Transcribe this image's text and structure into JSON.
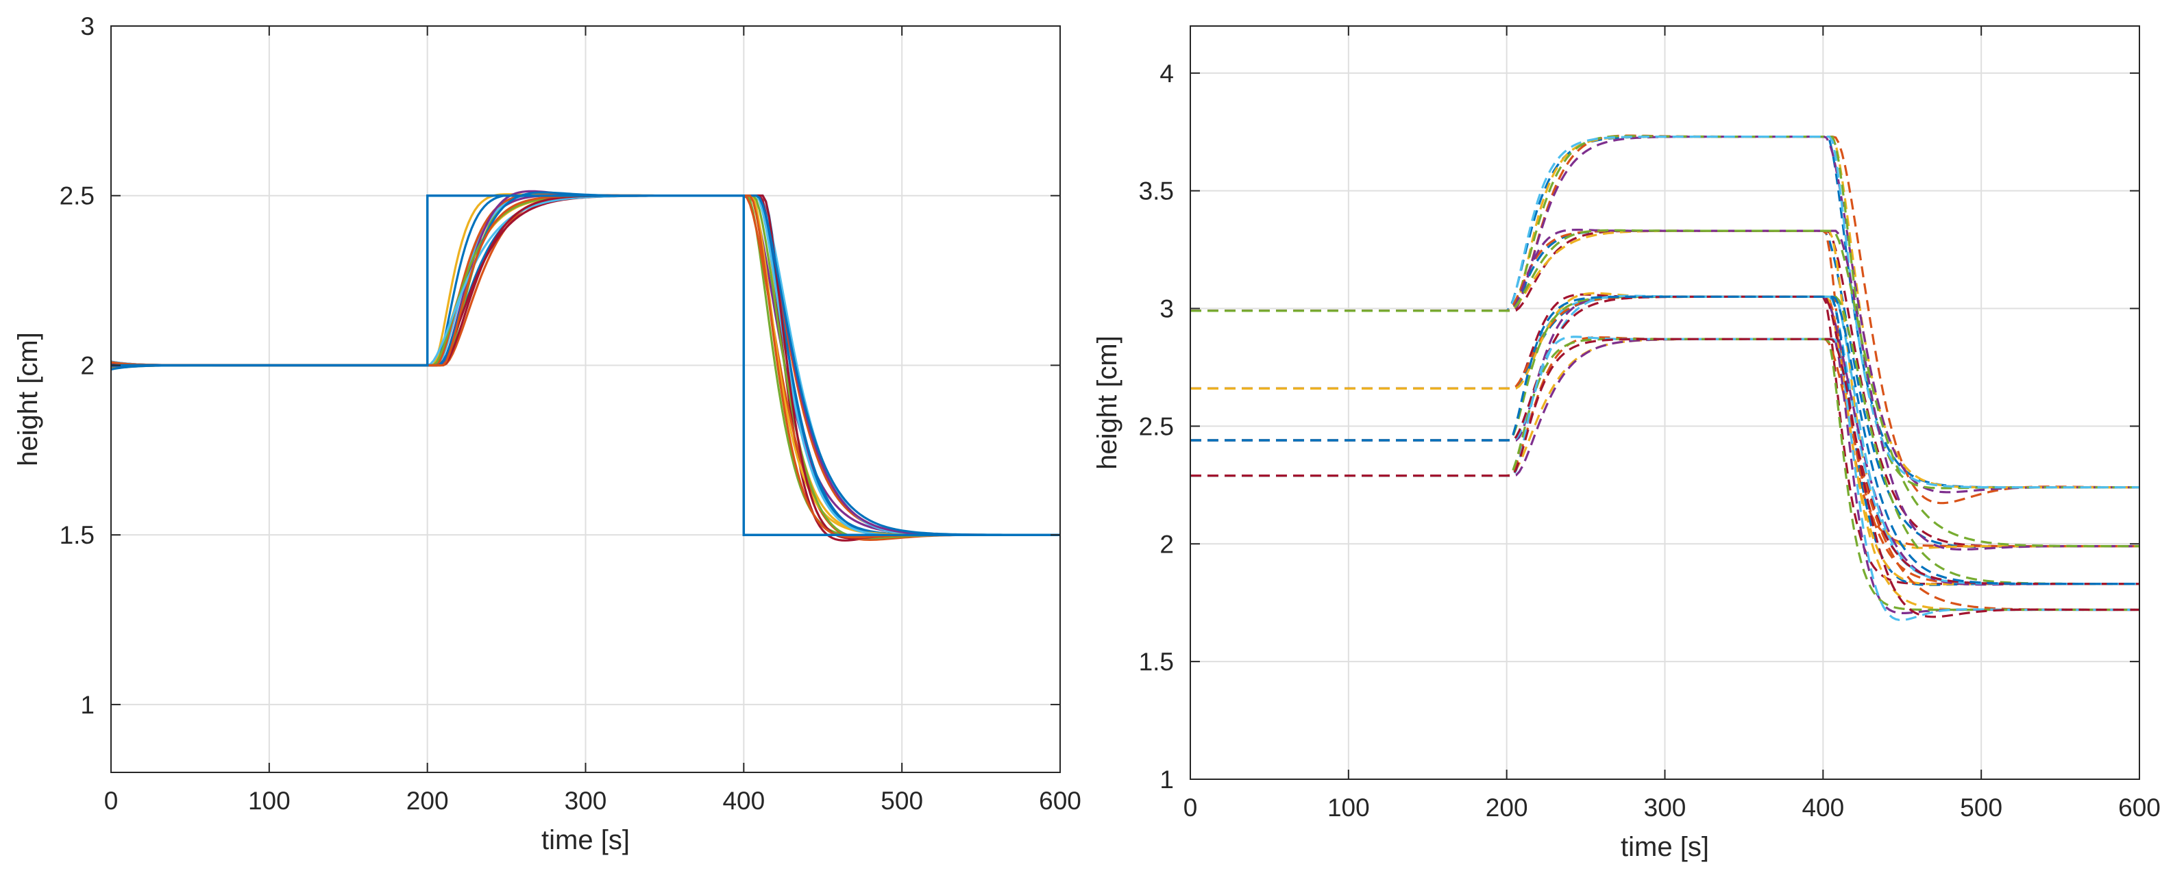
{
  "colors": {
    "ref": "#0072BD",
    "palette": [
      "#0072BD",
      "#D95319",
      "#EDB120",
      "#7E2F8E",
      "#77AC30",
      "#4DBEEE",
      "#A2142F"
    ]
  },
  "chart_data": [
    {
      "type": "line",
      "title": "",
      "xlabel": "time [s]",
      "ylabel": "height [cm]",
      "xlim": [
        0,
        600
      ],
      "ylim": [
        0.8,
        3
      ],
      "xticks": [
        0,
        100,
        200,
        300,
        400,
        500,
        600
      ],
      "xtick_labels": [
        "0",
        "100",
        "200",
        "300",
        "400",
        "500",
        "600"
      ],
      "yticks": [
        1,
        1.5,
        2,
        2.5,
        3
      ],
      "ytick_labels": [
        "1",
        "1.5",
        "2",
        "2.5",
        "3"
      ],
      "grid": true,
      "reference": {
        "name": "setpoint",
        "x": [
          0,
          200,
          200,
          400,
          400,
          600
        ],
        "y": [
          2,
          2,
          2.5,
          2.5,
          1.5,
          1.5
        ]
      },
      "responses": {
        "count": 16,
        "initial": 2.0,
        "steps": [
          {
            "t0": 200,
            "from": 2.0,
            "to": 2.5
          },
          {
            "t0": 400,
            "from": 2.5,
            "to": 1.5
          }
        ],
        "time_constant_range_s": [
          18,
          34
        ],
        "delay_range_s": [
          0,
          12
        ],
        "overshoot_range": [
          0,
          0.06
        ],
        "line_style": "solid"
      }
    },
    {
      "type": "line",
      "title": "",
      "xlabel": "time [s]",
      "ylabel": "height [cm]",
      "xlim": [
        0,
        600
      ],
      "ylim": [
        1,
        4.2
      ],
      "xticks": [
        0,
        100,
        200,
        300,
        400,
        500,
        600
      ],
      "xtick_labels": [
        "0",
        "100",
        "200",
        "300",
        "400",
        "500",
        "600"
      ],
      "yticks": [
        1,
        1.5,
        2,
        2.5,
        3,
        3.5,
        4
      ],
      "ytick_labels": [
        "1",
        "1.5",
        "2",
        "2.5",
        "3",
        "3.5",
        "4"
      ],
      "grid": true,
      "groups": [
        {
          "initial": 2.99,
          "level_200_400": 3.73,
          "level_400_600": 2.24,
          "curves": 6
        },
        {
          "initial": 2.99,
          "level_200_400": 3.33,
          "level_400_600": 1.99,
          "curves": 6
        },
        {
          "initial": 2.66,
          "level_200_400": 3.05,
          "level_400_600": 1.83,
          "curves": 5
        },
        {
          "initial": 2.44,
          "level_200_400": 3.05,
          "level_400_600": 1.83,
          "curves": 5
        },
        {
          "initial": 2.29,
          "level_200_400": 2.87,
          "level_400_600": 1.72,
          "curves": 6
        }
      ],
      "line_style": "dashed"
    }
  ]
}
